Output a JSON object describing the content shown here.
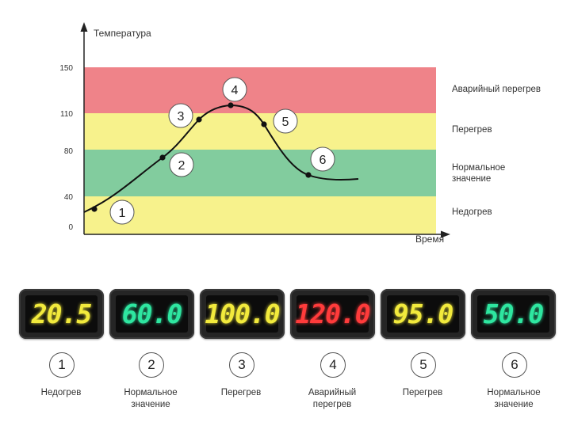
{
  "chart_data": {
    "type": "line",
    "ylabel": "Температура",
    "xlabel": "Время",
    "y_ticks": [
      "0",
      "40",
      "80",
      "110",
      "150"
    ],
    "ylim": [
      0,
      150
    ],
    "zones": [
      {
        "name": "Недогрев",
        "from": 0,
        "to": 40,
        "color": "#f7f28c"
      },
      {
        "name": "Нормальное значение",
        "from": 40,
        "to": 80,
        "color": "#82cc9e"
      },
      {
        "name": "Перегрев",
        "from": 80,
        "to": 110,
        "color": "#f7f28c"
      },
      {
        "name": "Аварийный перегрев",
        "from": 110,
        "to": 150,
        "color": "#ef8389"
      }
    ],
    "points": [
      {
        "label": "1",
        "value": 20.5
      },
      {
        "label": "2",
        "value": 60.0
      },
      {
        "label": "3",
        "value": 100.0
      },
      {
        "label": "4",
        "value": 120.0
      },
      {
        "label": "5",
        "value": 95.0
      },
      {
        "label": "6",
        "value": 50.0
      }
    ]
  },
  "zone_labels": {
    "alarm": "Аварийный перегрев",
    "overheat": "Перегрев",
    "normal_1": "Нормальное",
    "normal_2": "значение",
    "underheat": "Недогрев"
  },
  "displays": [
    {
      "number": "1",
      "value": "20.5",
      "color": "#f2ea3c",
      "caption_1": "Недогрев",
      "caption_2": ""
    },
    {
      "number": "2",
      "value": "60.0",
      "color": "#2ee6a0",
      "caption_1": "Нормальное",
      "caption_2": "значение"
    },
    {
      "number": "3",
      "value": "100.0",
      "color": "#f2ea3c",
      "caption_1": "Перегрев",
      "caption_2": ""
    },
    {
      "number": "4",
      "value": "120.0",
      "color": "#ff3b3b",
      "caption_1": "Аварийный",
      "caption_2": "перегрев"
    },
    {
      "number": "5",
      "value": "95.0",
      "color": "#f2ea3c",
      "caption_1": "Перегрев",
      "caption_2": ""
    },
    {
      "number": "6",
      "value": "50.0",
      "color": "#2ee6a0",
      "caption_1": "Нормальное",
      "caption_2": "значение"
    }
  ]
}
